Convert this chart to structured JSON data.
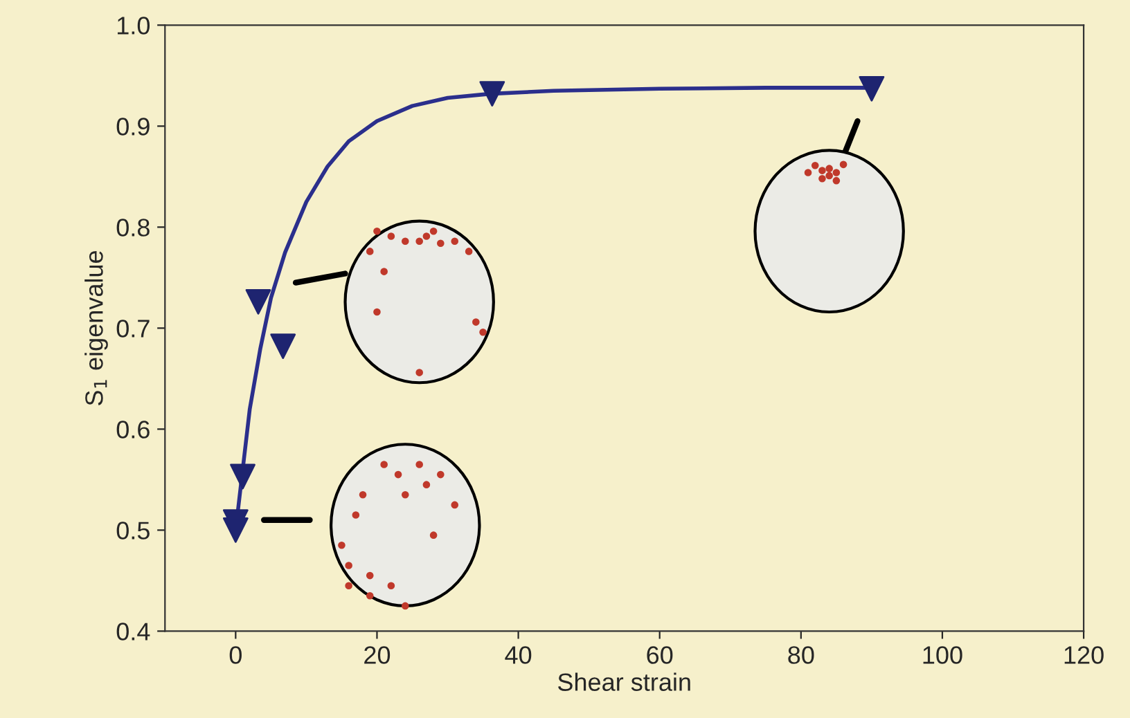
{
  "chart_data": {
    "type": "scatter",
    "xlabel": "Shear strain",
    "ylabel": "S$_{1}$ eigenvalue",
    "xlim": [
      -10,
      120
    ],
    "xticks": [
      0,
      20,
      40,
      60,
      80,
      100,
      120
    ],
    "ylim": [
      0.4,
      1.0
    ],
    "yticks": [
      0.4,
      0.5,
      0.6,
      0.7,
      0.8,
      0.9,
      {
        "value": 1.0,
        "label": "1.0"
      }
    ],
    "grid": false,
    "series": [
      {
        "type": "line",
        "marker": "none",
        "color": "#2b2f8c",
        "x": [
          0,
          1,
          2,
          3.5,
          5,
          7,
          10,
          13,
          16,
          20,
          25,
          30,
          36,
          45,
          60,
          75,
          90
        ],
        "values": [
          0.5,
          0.56,
          0.62,
          0.68,
          0.73,
          0.775,
          0.825,
          0.86,
          0.885,
          0.905,
          0.92,
          0.928,
          0.932,
          0.935,
          0.937,
          0.938,
          0.938
        ]
      },
      {
        "marker": "triangle",
        "color": "#1e2470",
        "x": [
          0,
          0,
          1,
          3.2,
          6.7,
          36.3,
          90
        ],
        "values": [
          0.508,
          0.5,
          0.553,
          0.726,
          0.682,
          0.932,
          0.937
        ]
      }
    ]
  }
}
